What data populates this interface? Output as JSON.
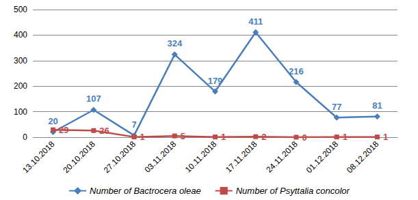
{
  "chart_data": {
    "type": "line",
    "categories": [
      "13.10.2018",
      "20.10.2018",
      "27.10.2018",
      "03.11.2018",
      "10.11.2018",
      "17.11.2018",
      "24.11.2018",
      "01.12.2018",
      "08.12.2018"
    ],
    "series": [
      {
        "name": "Number of Bactrocera oleae",
        "color": "#4a7ebb",
        "marker": "diamond",
        "values": [
          20,
          107,
          7,
          324,
          179,
          411,
          216,
          77,
          81
        ]
      },
      {
        "name": "Number of Psyttalia concolor",
        "color": "#be4b48",
        "marker": "square",
        "values": [
          29,
          26,
          1,
          5,
          1,
          2,
          0,
          1,
          1
        ]
      }
    ],
    "ylim": [
      0,
      500
    ],
    "yticks": [
      0,
      100,
      200,
      300,
      400,
      500
    ],
    "grid": true,
    "data_labels": true,
    "legend": "bottom"
  }
}
